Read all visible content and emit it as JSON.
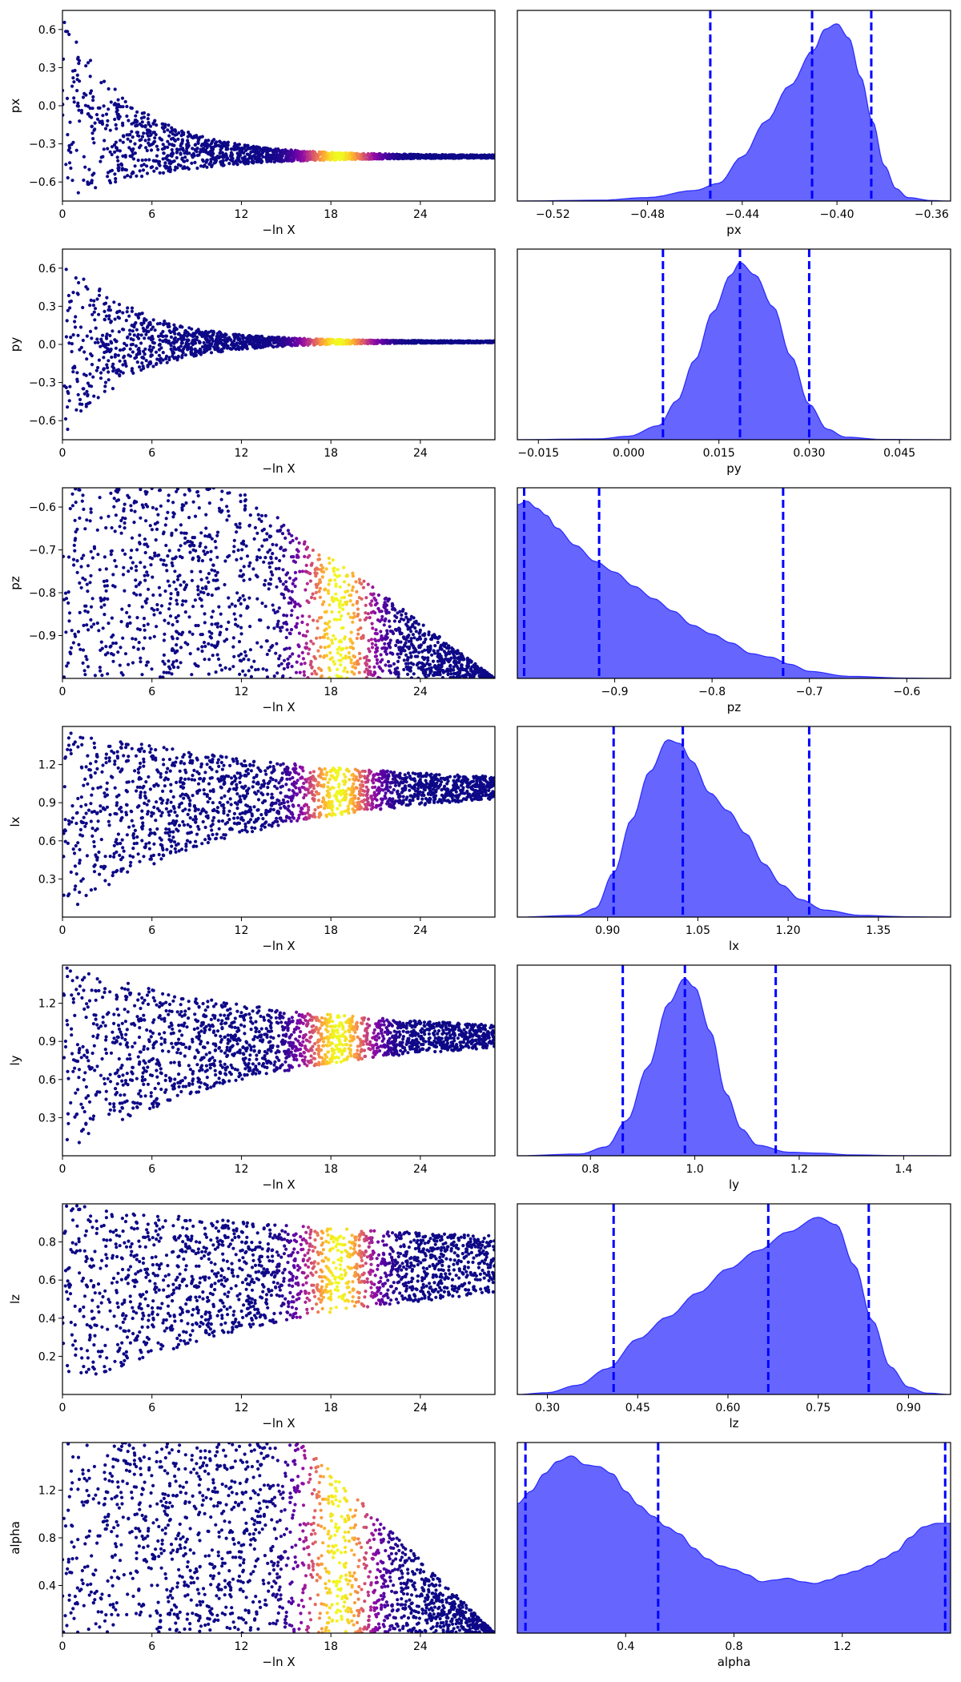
{
  "chart_data": [
    {
      "type": "scatter",
      "ylabel": "px",
      "xlabel": "−ln X",
      "xlim": [
        0,
        29
      ],
      "ylim": [
        -0.75,
        0.75
      ],
      "xticks": [
        0,
        6,
        12,
        18,
        24
      ],
      "yticks": [
        0.6,
        0.3,
        0.0,
        -0.3,
        -0.6
      ],
      "ytick_labels": [
        "0.6",
        "0.3",
        "0.0",
        "−0.3",
        "−0.6"
      ],
      "envelope": {
        "center_start": 0.0,
        "center_end": -0.4,
        "width_start": 0.75,
        "width_end": 0.01,
        "decay": 0.2,
        "x_end": 29
      },
      "colormap": "plasma",
      "color_peak_x": 18.5,
      "color_peak_width": 2.2
    },
    {
      "type": "area",
      "xlabel": "px",
      "xlim": [
        -0.535,
        -0.352
      ],
      "xticks": [
        -0.52,
        -0.48,
        -0.44,
        -0.4,
        -0.36
      ],
      "xtick_labels": [
        "−0.52",
        "−0.48",
        "−0.44",
        "−0.40",
        "−0.36"
      ],
      "density": [
        [
          -0.535,
          0
        ],
        [
          -0.5,
          0.005
        ],
        [
          -0.48,
          0.02
        ],
        [
          -0.46,
          0.06
        ],
        [
          -0.45,
          0.1
        ],
        [
          -0.44,
          0.25
        ],
        [
          -0.43,
          0.45
        ],
        [
          -0.42,
          0.65
        ],
        [
          -0.41,
          0.85
        ],
        [
          -0.405,
          0.97
        ],
        [
          -0.4,
          1.0
        ],
        [
          -0.395,
          0.92
        ],
        [
          -0.39,
          0.7
        ],
        [
          -0.385,
          0.45
        ],
        [
          -0.38,
          0.2
        ],
        [
          -0.375,
          0.07
        ],
        [
          -0.37,
          0.02
        ],
        [
          -0.36,
          0.003
        ],
        [
          -0.352,
          0
        ]
      ],
      "quantile_lines": [
        -0.4535,
        -0.4105,
        -0.3855
      ]
    },
    {
      "type": "scatter",
      "ylabel": "py",
      "xlabel": "−ln X",
      "xlim": [
        0,
        29
      ],
      "ylim": [
        -0.75,
        0.75
      ],
      "xticks": [
        0,
        6,
        12,
        18,
        24
      ],
      "yticks": [
        0.6,
        0.3,
        0.0,
        -0.3,
        -0.6
      ],
      "ytick_labels": [
        "0.6",
        "0.3",
        "0.0",
        "−0.3",
        "−0.6"
      ],
      "envelope": {
        "center_start": 0.0,
        "center_end": 0.02,
        "width_start": 0.75,
        "width_end": 0.006,
        "decay": 0.22,
        "x_end": 29
      },
      "colormap": "plasma",
      "color_peak_x": 18.5,
      "color_peak_width": 2.2
    },
    {
      "type": "area",
      "xlabel": "py",
      "xlim": [
        -0.0185,
        0.0535
      ],
      "xticks": [
        -0.015,
        0.0,
        0.015,
        0.03,
        0.045
      ],
      "xtick_labels": [
        "−0.015",
        "0.000",
        "0.015",
        "0.030",
        "0.045"
      ],
      "density": [
        [
          -0.0185,
          0
        ],
        [
          -0.005,
          0.005
        ],
        [
          0.0,
          0.02
        ],
        [
          0.005,
          0.08
        ],
        [
          0.008,
          0.22
        ],
        [
          0.011,
          0.45
        ],
        [
          0.014,
          0.72
        ],
        [
          0.017,
          0.93
        ],
        [
          0.0185,
          1.0
        ],
        [
          0.021,
          0.93
        ],
        [
          0.024,
          0.75
        ],
        [
          0.027,
          0.47
        ],
        [
          0.03,
          0.2
        ],
        [
          0.033,
          0.06
        ],
        [
          0.036,
          0.015
        ],
        [
          0.042,
          0.002
        ],
        [
          0.0535,
          0
        ]
      ],
      "quantile_lines": [
        0.0057,
        0.0185,
        0.03
      ]
    },
    {
      "type": "scatter",
      "ylabel": "pz",
      "xlabel": "−ln X",
      "xlim": [
        0,
        29
      ],
      "ylim": [
        -1.0,
        -0.555
      ],
      "xticks": [
        0,
        6,
        12,
        18,
        24
      ],
      "yticks": [
        -0.6,
        -0.7,
        -0.8,
        -0.9
      ],
      "ytick_labels": [
        "−0.6",
        "−0.7",
        "−0.8",
        "−0.9"
      ],
      "envelope": {
        "type": "triangle",
        "low": -1.0,
        "high": -0.555,
        "x_flat": 12,
        "x_end": 29
      },
      "colormap": "plasma",
      "color_peak_x": 18.5,
      "color_peak_width": 2.2
    },
    {
      "type": "area",
      "xlabel": "pz",
      "xlim": [
        -1.0,
        -0.555
      ],
      "xticks": [
        -0.9,
        -0.8,
        -0.7,
        -0.6
      ],
      "xtick_labels": [
        "−0.9",
        "−0.8",
        "−0.7",
        "−0.6"
      ],
      "density": [
        [
          -1.0,
          0.98
        ],
        [
          -0.99,
          1.0
        ],
        [
          -0.98,
          0.96
        ],
        [
          -0.97,
          0.92
        ],
        [
          -0.96,
          0.85
        ],
        [
          -0.94,
          0.75
        ],
        [
          -0.92,
          0.66
        ],
        [
          -0.9,
          0.6
        ],
        [
          -0.88,
          0.52
        ],
        [
          -0.86,
          0.45
        ],
        [
          -0.84,
          0.38
        ],
        [
          -0.82,
          0.3
        ],
        [
          -0.8,
          0.25
        ],
        [
          -0.78,
          0.2
        ],
        [
          -0.76,
          0.14
        ],
        [
          -0.74,
          0.12
        ],
        [
          -0.72,
          0.08
        ],
        [
          -0.7,
          0.04
        ],
        [
          -0.66,
          0.012
        ],
        [
          -0.6,
          0.002
        ],
        [
          -0.555,
          0
        ]
      ],
      "quantile_lines": [
        -0.993,
        -0.916,
        -0.727
      ]
    },
    {
      "type": "scatter",
      "ylabel": "lx",
      "xlabel": "−ln X",
      "xlim": [
        0,
        29
      ],
      "ylim": [
        0.0,
        1.5
      ],
      "xticks": [
        0,
        6,
        12,
        18,
        24
      ],
      "yticks": [
        1.2,
        0.9,
        0.6,
        0.3
      ],
      "ytick_labels": [
        "1.2",
        "0.9",
        "0.6",
        "0.3"
      ],
      "envelope": {
        "center_start": 0.75,
        "center_end": 1.03,
        "width_start": 0.75,
        "width_end": 0.02,
        "decay": 0.08,
        "x_end": 29
      },
      "colormap": "plasma",
      "color_peak_x": 18.5,
      "color_peak_width": 2.2
    },
    {
      "type": "area",
      "xlabel": "lx",
      "xlim": [
        0.75,
        1.47
      ],
      "xticks": [
        0.9,
        1.05,
        1.2,
        1.35
      ],
      "xtick_labels": [
        "0.90",
        "1.05",
        "1.20",
        "1.35"
      ],
      "density": [
        [
          0.75,
          0
        ],
        [
          0.85,
          0.01
        ],
        [
          0.88,
          0.05
        ],
        [
          0.91,
          0.25
        ],
        [
          0.94,
          0.55
        ],
        [
          0.97,
          0.82
        ],
        [
          1.0,
          1.0
        ],
        [
          1.02,
          0.98
        ],
        [
          1.04,
          0.88
        ],
        [
          1.07,
          0.7
        ],
        [
          1.1,
          0.6
        ],
        [
          1.13,
          0.47
        ],
        [
          1.16,
          0.3
        ],
        [
          1.19,
          0.18
        ],
        [
          1.22,
          0.1
        ],
        [
          1.26,
          0.04
        ],
        [
          1.32,
          0.01
        ],
        [
          1.4,
          0.002
        ],
        [
          1.47,
          0
        ]
      ],
      "quantile_lines": [
        0.91,
        1.025,
        1.235
      ]
    },
    {
      "type": "scatter",
      "ylabel": "ly",
      "xlabel": "−ln X",
      "xlim": [
        0,
        29
      ],
      "ylim": [
        0.0,
        1.5
      ],
      "xticks": [
        0,
        6,
        12,
        18,
        24
      ],
      "yticks": [
        1.2,
        0.9,
        0.6,
        0.3
      ],
      "ytick_labels": [
        "1.2",
        "0.9",
        "0.6",
        "0.3"
      ],
      "envelope": {
        "center_start": 0.75,
        "center_end": 0.95,
        "width_start": 0.75,
        "width_end": 0.02,
        "decay": 0.08,
        "x_end": 29
      },
      "colormap": "plasma",
      "color_peak_x": 18.5,
      "color_peak_width": 2.2
    },
    {
      "type": "area",
      "xlabel": "ly",
      "xlim": [
        0.66,
        1.49
      ],
      "xticks": [
        0.8,
        1.0,
        1.2,
        1.4
      ],
      "xtick_labels": [
        "0.8",
        "1.0",
        "1.2",
        "1.4"
      ],
      "density": [
        [
          0.66,
          0
        ],
        [
          0.78,
          0.01
        ],
        [
          0.83,
          0.05
        ],
        [
          0.87,
          0.2
        ],
        [
          0.91,
          0.5
        ],
        [
          0.95,
          0.86
        ],
        [
          0.98,
          1.0
        ],
        [
          1.0,
          0.95
        ],
        [
          1.03,
          0.7
        ],
        [
          1.06,
          0.35
        ],
        [
          1.09,
          0.15
        ],
        [
          1.12,
          0.06
        ],
        [
          1.18,
          0.02
        ],
        [
          1.24,
          0.015
        ],
        [
          1.3,
          0.005
        ],
        [
          1.4,
          0.001
        ],
        [
          1.49,
          0
        ]
      ],
      "quantile_lines": [
        0.862,
        0.981,
        1.155
      ]
    },
    {
      "type": "scatter",
      "ylabel": "lz",
      "xlabel": "−ln X",
      "xlim": [
        0,
        29
      ],
      "ylim": [
        0.0,
        1.0
      ],
      "xticks": [
        0,
        6,
        12,
        18,
        24
      ],
      "yticks": [
        0.8,
        0.6,
        0.4,
        0.2
      ],
      "ytick_labels": [
        "0.8",
        "0.6",
        "0.4",
        "0.2"
      ],
      "envelope": {
        "center_start": 0.5,
        "center_end": 0.7,
        "width_start": 0.5,
        "width_end": 0.08,
        "decay": 0.06,
        "x_end": 29
      },
      "colormap": "plasma",
      "color_peak_x": 18.5,
      "color_peak_width": 2.2
    },
    {
      "type": "area",
      "xlabel": "lz",
      "xlim": [
        0.25,
        0.97
      ],
      "xticks": [
        0.3,
        0.45,
        0.6,
        0.75,
        0.9
      ],
      "xtick_labels": [
        "0.30",
        "0.45",
        "0.60",
        "0.75",
        "0.90"
      ],
      "density": [
        [
          0.25,
          0
        ],
        [
          0.3,
          0.01
        ],
        [
          0.35,
          0.05
        ],
        [
          0.4,
          0.14
        ],
        [
          0.45,
          0.3
        ],
        [
          0.5,
          0.42
        ],
        [
          0.55,
          0.55
        ],
        [
          0.6,
          0.68
        ],
        [
          0.65,
          0.78
        ],
        [
          0.7,
          0.88
        ],
        [
          0.75,
          0.96
        ],
        [
          0.78,
          0.92
        ],
        [
          0.81,
          0.7
        ],
        [
          0.84,
          0.4
        ],
        [
          0.87,
          0.15
        ],
        [
          0.9,
          0.04
        ],
        [
          0.93,
          0.008
        ],
        [
          0.97,
          0
        ]
      ],
      "quantile_lines": [
        0.41,
        0.667,
        0.834
      ]
    },
    {
      "type": "scatter",
      "ylabel": "alpha",
      "xlabel": "−ln X",
      "xlim": [
        0,
        29
      ],
      "ylim": [
        0.0,
        1.6
      ],
      "xticks": [
        0,
        6,
        12,
        18,
        24
      ],
      "yticks": [
        1.2,
        0.8,
        0.4
      ],
      "ytick_labels": [
        "1.2",
        "0.8",
        "0.4"
      ],
      "envelope": {
        "type": "band",
        "low": 0.0,
        "high": 1.6,
        "x_flat": 16,
        "x_end": 29
      },
      "colormap": "plasma",
      "color_peak_x": 18.5,
      "color_peak_width": 2.2
    },
    {
      "type": "area",
      "xlabel": "alpha",
      "xlim": [
        0.0,
        1.6
      ],
      "xticks": [
        0.4,
        0.8,
        1.2
      ],
      "xtick_labels": [
        "0.4",
        "0.8",
        "1.2"
      ],
      "density": [
        [
          0.0,
          0.73
        ],
        [
          0.05,
          0.8
        ],
        [
          0.1,
          0.9
        ],
        [
          0.15,
          0.97
        ],
        [
          0.2,
          1.0
        ],
        [
          0.25,
          0.95
        ],
        [
          0.3,
          0.94
        ],
        [
          0.35,
          0.9
        ],
        [
          0.4,
          0.8
        ],
        [
          0.45,
          0.72
        ],
        [
          0.5,
          0.66
        ],
        [
          0.55,
          0.6
        ],
        [
          0.6,
          0.56
        ],
        [
          0.65,
          0.48
        ],
        [
          0.7,
          0.42
        ],
        [
          0.75,
          0.38
        ],
        [
          0.8,
          0.36
        ],
        [
          0.85,
          0.33
        ],
        [
          0.9,
          0.29
        ],
        [
          0.95,
          0.3
        ],
        [
          1.0,
          0.31
        ],
        [
          1.05,
          0.29
        ],
        [
          1.1,
          0.28
        ],
        [
          1.15,
          0.3
        ],
        [
          1.2,
          0.33
        ],
        [
          1.25,
          0.35
        ],
        [
          1.3,
          0.38
        ],
        [
          1.35,
          0.42
        ],
        [
          1.4,
          0.46
        ],
        [
          1.45,
          0.54
        ],
        [
          1.5,
          0.6
        ],
        [
          1.55,
          0.62
        ],
        [
          1.6,
          0.62
        ]
      ],
      "quantile_lines": [
        0.03,
        0.52,
        1.58
      ]
    }
  ],
  "colors": {
    "fill": "#0000ff",
    "fill_opacity": 0.6,
    "quantile_line": "#0000ff"
  }
}
